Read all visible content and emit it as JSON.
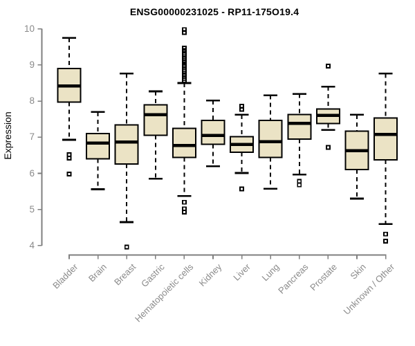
{
  "title": "ENSG00000231025 - RP11-175O19.4",
  "colors": {
    "title": "#000000",
    "axis": "#7f7f7f",
    "tick_label": "#8a8a8a",
    "box_fill": "#EBE3C5",
    "box_stroke": "#000000",
    "median": "#000000",
    "whisker": "#000000",
    "outlier": "#000000"
  },
  "chart_data": {
    "type": "boxplot",
    "title": "ENSG00000231025 - RP11-175O19.4",
    "xlabel": "",
    "ylabel": "Expression",
    "ylim": [
      4,
      10
    ],
    "yticks": [
      4,
      5,
      6,
      7,
      8,
      9,
      10
    ],
    "grid": false,
    "legend": "none",
    "categories": [
      "Bladder",
      "Brain",
      "Breast",
      "Gastric",
      "Hematopoietic cells",
      "Kidney",
      "Liver",
      "Lung",
      "Pancreas",
      "Prostate",
      "Skin",
      "Unknown / Other"
    ],
    "series": [
      {
        "name": "Bladder",
        "whisker_low": 6.93,
        "q1": 7.97,
        "median": 8.42,
        "q3": 8.9,
        "whisker_high": 9.75,
        "outliers": [
          6.52,
          6.42,
          5.98
        ]
      },
      {
        "name": "Brain",
        "whisker_low": 5.56,
        "q1": 6.4,
        "median": 6.84,
        "q3": 7.1,
        "whisker_high": 7.7,
        "outliers": []
      },
      {
        "name": "Breast",
        "whisker_low": 4.65,
        "q1": 6.26,
        "median": 6.87,
        "q3": 7.34,
        "whisker_high": 8.76,
        "outliers": [
          3.96
        ]
      },
      {
        "name": "Gastric",
        "whisker_low": 5.85,
        "q1": 7.05,
        "median": 7.62,
        "q3": 7.9,
        "whisker_high": 8.27,
        "outliers": []
      },
      {
        "name": "Hematopoietic cells",
        "whisker_low": 5.37,
        "q1": 6.44,
        "median": 6.77,
        "q3": 7.25,
        "whisker_high": 8.5,
        "outliers": [
          9.98,
          9.9,
          9.47,
          9.4,
          9.33,
          9.28,
          9.23,
          9.18,
          9.13,
          9.08,
          9.02,
          8.97,
          8.92,
          8.87,
          8.82,
          8.77,
          8.72,
          8.67,
          8.62,
          8.57,
          5.2,
          5.02,
          4.93
        ]
      },
      {
        "name": "Kidney",
        "whisker_low": 6.2,
        "q1": 6.8,
        "median": 7.05,
        "q3": 7.47,
        "whisker_high": 8.02,
        "outliers": []
      },
      {
        "name": "Liver",
        "whisker_low": 6.01,
        "q1": 6.58,
        "median": 6.8,
        "q3": 7.02,
        "whisker_high": 7.62,
        "outliers": [
          7.86,
          7.77,
          5.57
        ]
      },
      {
        "name": "Lung",
        "whisker_low": 5.57,
        "q1": 6.44,
        "median": 6.88,
        "q3": 7.47,
        "whisker_high": 8.16,
        "outliers": []
      },
      {
        "name": "Pancreas",
        "whisker_low": 5.97,
        "q1": 6.95,
        "median": 7.38,
        "q3": 7.63,
        "whisker_high": 8.2,
        "outliers": [
          5.78,
          5.68
        ]
      },
      {
        "name": "Prostate",
        "whisker_low": 7.2,
        "q1": 7.38,
        "median": 7.6,
        "q3": 7.78,
        "whisker_high": 8.4,
        "outliers": [
          8.97,
          6.72
        ]
      },
      {
        "name": "Skin",
        "whisker_low": 5.3,
        "q1": 6.11,
        "median": 6.63,
        "q3": 7.17,
        "whisker_high": 7.62,
        "outliers": []
      },
      {
        "name": "Unknown / Other",
        "whisker_low": 4.6,
        "q1": 6.37,
        "median": 7.08,
        "q3": 7.53,
        "whisker_high": 8.76,
        "outliers": [
          4.32,
          4.12
        ]
      }
    ]
  }
}
